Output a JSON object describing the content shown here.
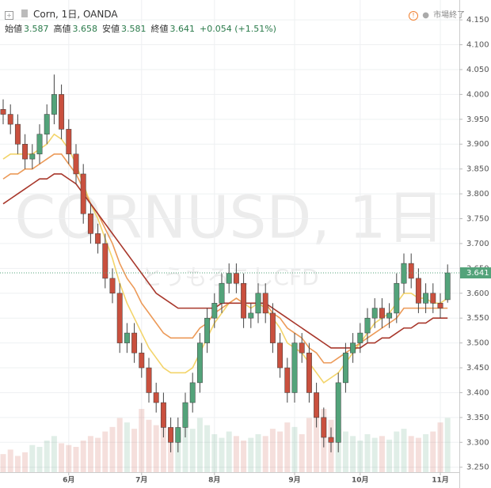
{
  "chart_data": {
    "type": "candlestick",
    "title": "Corn, 1日, OANDA",
    "ohlc_header": [
      {
        "label": "始値",
        "value": 3.587
      },
      {
        "label": "高値",
        "value": 3.658
      },
      {
        "label": "安値",
        "value": 3.581
      },
      {
        "label": "終値",
        "value": 3.641
      }
    ],
    "change": "+0.054 (+1.51%)",
    "status": "市場終了",
    "watermark": "CORNUSD, 1日",
    "watermark_sub": "とうもろこしCFD",
    "last_price": 3.641,
    "up_color": "#53a37a",
    "down_color": "#c9503e",
    "categories": [
      null,
      null,
      null,
      null,
      null,
      null,
      null,
      null,
      null,
      "6月",
      null,
      null,
      null,
      null,
      null,
      null,
      null,
      null,
      null,
      "7月",
      null,
      null,
      null,
      null,
      null,
      null,
      null,
      null,
      null,
      "8月",
      null,
      null,
      null,
      null,
      null,
      null,
      null,
      null,
      null,
      null,
      "9月",
      null,
      null,
      null,
      null,
      null,
      null,
      null,
      null,
      "10月",
      null,
      null,
      null,
      null,
      null,
      null,
      null,
      null,
      null,
      null,
      "11月",
      null
    ],
    "open": [
      3.97,
      3.96,
      3.94,
      3.9,
      3.87,
      3.88,
      3.92,
      3.96,
      4.0,
      3.93,
      3.88,
      3.84,
      3.76,
      3.72,
      3.7,
      3.63,
      3.6,
      3.5,
      3.52,
      3.48,
      3.45,
      3.4,
      3.38,
      3.33,
      3.3,
      3.33,
      3.38,
      3.42,
      3.5,
      3.55,
      3.58,
      3.62,
      3.64,
      3.62,
      3.55,
      3.56,
      3.6,
      3.56,
      3.5,
      3.45,
      3.4,
      3.5,
      3.48,
      3.4,
      3.35,
      3.31,
      3.3,
      3.42,
      3.48,
      3.5,
      3.52,
      3.55,
      3.57,
      3.55,
      3.56,
      3.62,
      3.66,
      3.63,
      3.58,
      3.6,
      3.58,
      3.587
    ],
    "high": [
      3.99,
      3.98,
      3.96,
      3.92,
      3.9,
      3.94,
      3.98,
      4.04,
      4.02,
      3.95,
      3.9,
      3.86,
      3.78,
      3.74,
      3.72,
      3.65,
      3.62,
      3.54,
      3.54,
      3.5,
      3.47,
      3.42,
      3.4,
      3.35,
      3.35,
      3.4,
      3.44,
      3.52,
      3.57,
      3.6,
      3.64,
      3.66,
      3.66,
      3.64,
      3.58,
      3.62,
      3.62,
      3.58,
      3.52,
      3.47,
      3.52,
      3.52,
      3.5,
      3.42,
      3.37,
      3.33,
      3.44,
      3.5,
      3.52,
      3.54,
      3.57,
      3.59,
      3.59,
      3.58,
      3.64,
      3.68,
      3.68,
      3.65,
      3.62,
      3.62,
      3.6,
      3.658
    ],
    "low": [
      3.94,
      3.92,
      3.88,
      3.85,
      3.85,
      3.86,
      3.9,
      3.94,
      3.91,
      3.86,
      3.82,
      3.74,
      3.7,
      3.68,
      3.61,
      3.58,
      3.48,
      3.48,
      3.46,
      3.43,
      3.38,
      3.36,
      3.31,
      3.28,
      3.28,
      3.31,
      3.36,
      3.4,
      3.48,
      3.53,
      3.56,
      3.6,
      3.6,
      3.53,
      3.53,
      3.54,
      3.54,
      3.48,
      3.43,
      3.38,
      3.38,
      3.46,
      3.38,
      3.33,
      3.29,
      3.28,
      3.28,
      3.4,
      3.46,
      3.48,
      3.5,
      3.53,
      3.53,
      3.53,
      3.54,
      3.6,
      3.61,
      3.56,
      3.56,
      3.56,
      3.55,
      3.581
    ],
    "close": [
      3.96,
      3.94,
      3.9,
      3.87,
      3.88,
      3.92,
      3.96,
      4.0,
      3.93,
      3.88,
      3.84,
      3.76,
      3.72,
      3.7,
      3.63,
      3.6,
      3.5,
      3.52,
      3.48,
      3.45,
      3.4,
      3.38,
      3.33,
      3.3,
      3.33,
      3.38,
      3.42,
      3.5,
      3.55,
      3.58,
      3.62,
      3.64,
      3.62,
      3.55,
      3.56,
      3.6,
      3.56,
      3.5,
      3.45,
      3.4,
      3.5,
      3.48,
      3.4,
      3.35,
      3.31,
      3.3,
      3.42,
      3.48,
      3.5,
      3.52,
      3.55,
      3.57,
      3.55,
      3.56,
      3.62,
      3.66,
      3.63,
      3.58,
      3.6,
      3.58,
      3.57,
      3.641
    ],
    "volume": [
      20,
      25,
      18,
      22,
      30,
      28,
      35,
      40,
      32,
      30,
      28,
      35,
      40,
      38,
      45,
      50,
      60,
      55,
      48,
      70,
      58,
      52,
      65,
      50,
      45,
      55,
      48,
      60,
      52,
      42,
      38,
      45,
      40,
      35,
      38,
      42,
      40,
      48,
      45,
      55,
      50,
      42,
      60,
      65,
      70,
      58,
      48,
      45,
      40,
      35,
      42,
      38,
      40,
      36,
      45,
      48,
      40,
      38,
      42,
      45,
      55,
      60
    ],
    "series": [
      {
        "color": "#f3d46a",
        "values": [
          3.87,
          3.88,
          3.88,
          3.88,
          3.88,
          3.89,
          3.9,
          3.92,
          3.91,
          3.89,
          3.86,
          3.82,
          3.78,
          3.75,
          3.71,
          3.67,
          3.62,
          3.58,
          3.55,
          3.52,
          3.49,
          3.47,
          3.45,
          3.44,
          3.44,
          3.44,
          3.45,
          3.48,
          3.51,
          3.54,
          3.56,
          3.58,
          3.59,
          3.58,
          3.57,
          3.58,
          3.57,
          3.55,
          3.53,
          3.5,
          3.49,
          3.48,
          3.46,
          3.44,
          3.42,
          3.43,
          3.44,
          3.46,
          3.48,
          3.5,
          3.52,
          3.54,
          3.55,
          3.56,
          3.58,
          3.6,
          3.6,
          3.59,
          3.59,
          3.58,
          3.58,
          3.59
        ]
      },
      {
        "color": "#ec9a58",
        "values": [
          3.83,
          3.84,
          3.84,
          3.85,
          3.85,
          3.86,
          3.87,
          3.88,
          3.88,
          3.86,
          3.84,
          3.81,
          3.78,
          3.76,
          3.73,
          3.7,
          3.66,
          3.63,
          3.61,
          3.58,
          3.56,
          3.54,
          3.52,
          3.51,
          3.51,
          3.51,
          3.51,
          3.53,
          3.54,
          3.56,
          3.57,
          3.58,
          3.59,
          3.58,
          3.58,
          3.58,
          3.58,
          3.56,
          3.55,
          3.53,
          3.52,
          3.51,
          3.49,
          3.48,
          3.46,
          3.46,
          3.47,
          3.48,
          3.49,
          3.5,
          3.51,
          3.52,
          3.53,
          3.54,
          3.55,
          3.57,
          3.57,
          3.57,
          3.57,
          3.57,
          3.57,
          3.57
        ]
      },
      {
        "color": "#a8372b",
        "values": [
          3.78,
          3.79,
          3.8,
          3.81,
          3.82,
          3.83,
          3.83,
          3.84,
          3.84,
          3.83,
          3.82,
          3.8,
          3.78,
          3.76,
          3.74,
          3.72,
          3.7,
          3.68,
          3.66,
          3.64,
          3.62,
          3.6,
          3.59,
          3.58,
          3.57,
          3.57,
          3.57,
          3.57,
          3.57,
          3.57,
          3.58,
          3.58,
          3.58,
          3.58,
          3.58,
          3.58,
          3.58,
          3.57,
          3.56,
          3.55,
          3.54,
          3.53,
          3.52,
          3.51,
          3.5,
          3.49,
          3.49,
          3.49,
          3.49,
          3.49,
          3.5,
          3.5,
          3.51,
          3.51,
          3.52,
          3.53,
          3.53,
          3.54,
          3.54,
          3.55,
          3.55,
          3.55
        ]
      }
    ],
    "ylim": [
      3.24,
      4.19
    ],
    "yticks": [
      {
        "value": 3.25,
        "label": "3.250"
      },
      {
        "value": 3.3,
        "label": "3.300"
      },
      {
        "value": 3.35,
        "label": "3.350"
      },
      {
        "value": 3.4,
        "label": "3.400"
      },
      {
        "value": 3.45,
        "label": "3.450"
      },
      {
        "value": 3.5,
        "label": "3.500"
      },
      {
        "value": 3.55,
        "label": "3.550"
      },
      {
        "value": 3.6,
        "label": "3.600"
      },
      {
        "value": 3.65,
        "label": "3.650"
      },
      {
        "value": 3.7,
        "label": "3.700"
      },
      {
        "value": 3.75,
        "label": "3.750"
      },
      {
        "value": 3.8,
        "label": "3.800"
      },
      {
        "value": 3.85,
        "label": "3.850"
      },
      {
        "value": 3.9,
        "label": "3.900"
      },
      {
        "value": 3.95,
        "label": "3.950"
      },
      {
        "value": 4.0,
        "label": "4.000"
      },
      {
        "value": 4.05,
        "label": "4.050"
      },
      {
        "value": 4.1,
        "label": "4.100"
      },
      {
        "value": 4.15,
        "label": "4.150"
      }
    ],
    "grid": true
  }
}
